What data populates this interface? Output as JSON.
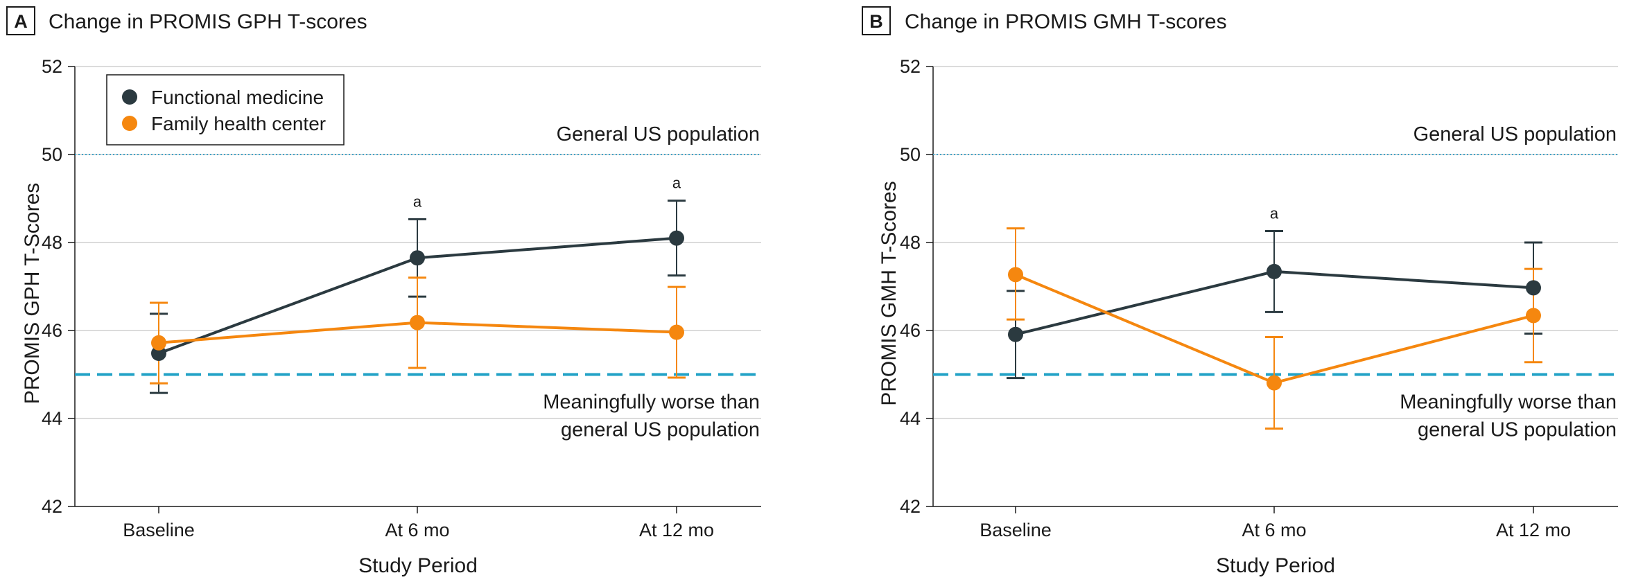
{
  "colors": {
    "functional_medicine": "#2b3a40",
    "family_health_center": "#f5870f",
    "reference_50": "#3fa3c8",
    "reference_45": "#21a2c6",
    "gridline": "#cfcfcf"
  },
  "legend": {
    "items": [
      {
        "label": "Functional medicine",
        "color": "#2b3a40"
      },
      {
        "label": "Family health center",
        "color": "#f5870f"
      }
    ]
  },
  "chart_data": [
    {
      "type": "line",
      "panel": "A",
      "title": "Change in PROMIS GPH T-scores",
      "xlabel": "Study Period",
      "ylabel": "PROMIS GPH T-Scores",
      "categories": [
        "Baseline",
        "At 6 mo",
        "At 12 mo"
      ],
      "ylim": [
        42,
        52
      ],
      "yticks": [
        "42",
        "44",
        "46",
        "48",
        "50",
        "52"
      ],
      "grid": true,
      "legend_position": "top-left",
      "reference_lines": [
        {
          "value": 50,
          "label": "General US population",
          "style": "dotted"
        },
        {
          "value": 45,
          "label": "Meaningfully worse than general US population",
          "label_lines": [
            "Meaningfully worse than",
            "general US population"
          ],
          "style": "dashed"
        }
      ],
      "series": [
        {
          "name": "Functional medicine",
          "values": [
            45.48,
            47.65,
            48.1
          ],
          "lower": [
            44.58,
            46.77,
            47.25
          ],
          "upper": [
            46.38,
            48.53,
            48.95
          ]
        },
        {
          "name": "Family health center",
          "values": [
            45.72,
            46.18,
            45.96
          ],
          "lower": [
            44.8,
            45.15,
            44.93
          ],
          "upper": [
            46.63,
            47.2,
            46.99
          ]
        }
      ],
      "annotations": [
        {
          "category": "At 6 mo",
          "text": "a"
        },
        {
          "category": "At 12 mo",
          "text": "a"
        }
      ]
    },
    {
      "type": "line",
      "panel": "B",
      "title": "Change in PROMIS GMH T-scores",
      "xlabel": "Study Period",
      "ylabel": "PROMIS GMH T-Scores",
      "categories": [
        "Baseline",
        "At 6 mo",
        "At 12 mo"
      ],
      "ylim": [
        42,
        52
      ],
      "yticks": [
        "42",
        "44",
        "46",
        "48",
        "50",
        "52"
      ],
      "grid": true,
      "reference_lines": [
        {
          "value": 50,
          "label": "General US population",
          "style": "dotted"
        },
        {
          "value": 45,
          "label": "Meaningfully worse than general US population",
          "label_lines": [
            "Meaningfully worse than",
            "general US population"
          ],
          "style": "dashed"
        }
      ],
      "series": [
        {
          "name": "Functional medicine",
          "values": [
            45.91,
            47.34,
            46.97
          ],
          "lower": [
            44.92,
            46.42,
            45.93
          ],
          "upper": [
            46.9,
            48.26,
            48.0
          ]
        },
        {
          "name": "Family health center",
          "values": [
            47.27,
            44.81,
            46.34
          ],
          "lower": [
            46.25,
            43.77,
            45.28
          ],
          "upper": [
            48.32,
            45.85,
            47.4
          ]
        }
      ],
      "annotations": [
        {
          "category": "At 6 mo",
          "text": "a"
        }
      ]
    }
  ]
}
